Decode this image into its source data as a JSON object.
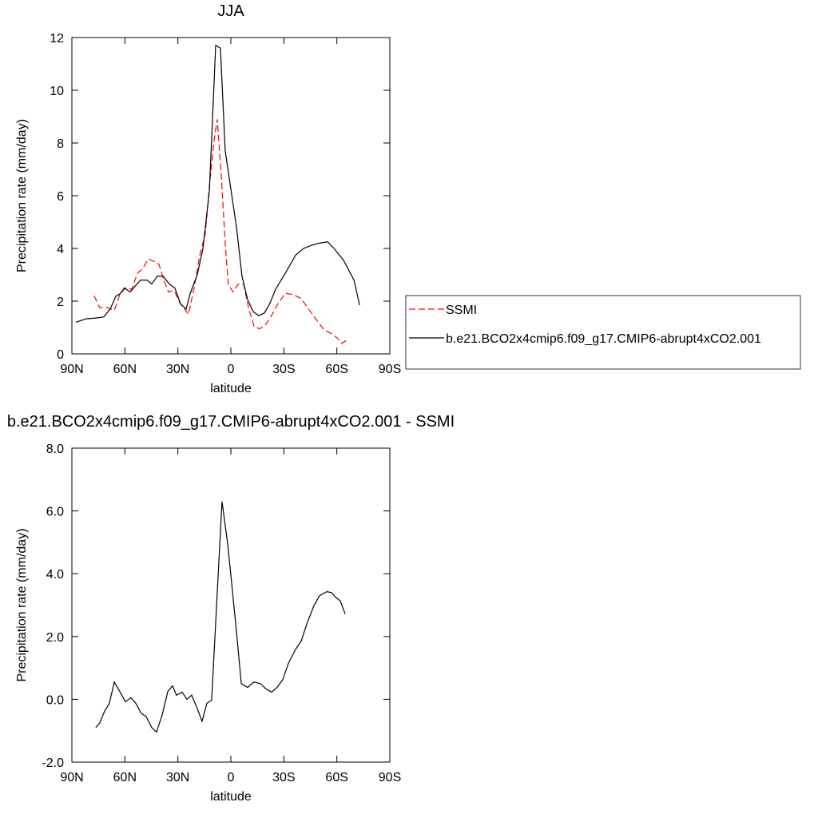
{
  "chart_data": [
    {
      "type": "line",
      "title": "JJA",
      "xlabel": "latitude",
      "ylabel": "Precipitation rate (mm/day)",
      "xlim": [
        90,
        -90
      ],
      "ylim": [
        0,
        12
      ],
      "xticks": [
        {
          "value": 90,
          "label": "90N"
        },
        {
          "value": 60,
          "label": "60N"
        },
        {
          "value": 30,
          "label": "30N"
        },
        0,
        {
          "value": -30,
          "label": "30S"
        },
        {
          "value": -60,
          "label": "60S"
        },
        {
          "value": -90,
          "label": "90S"
        }
      ],
      "yticks": [
        0,
        2,
        4,
        6,
        8,
        10,
        12
      ],
      "legend": "right",
      "series": [
        {
          "name": "SSMI",
          "color": "#ff0000",
          "dashed": true,
          "x": [
            77.4,
            74.2,
            69.7,
            66,
            62.9,
            59.7,
            56,
            53,
            49.8,
            46.6,
            43.4,
            40.7,
            38,
            35.3,
            32,
            29,
            24,
            20.8,
            17.6,
            14.5,
            11.8,
            9.5,
            7.7,
            5.4,
            3.2,
            1.4,
            -1.4,
            -4.1,
            -7.2,
            -10,
            -13.1,
            -16.3,
            -19.5,
            -23,
            -26.2,
            -30.8,
            -35.3,
            -39.8,
            -43.4,
            -48.4,
            -52.9,
            -57.5,
            -60.2,
            -62.9,
            -65.2
          ],
          "values": [
            2.2,
            1.75,
            1.75,
            1.65,
            2.25,
            2.5,
            2.45,
            3.05,
            3.25,
            3.6,
            3.5,
            3.4,
            2.8,
            2.35,
            2.4,
            1.95,
            1.5,
            2.5,
            3.75,
            4.55,
            6.6,
            8.1,
            8.9,
            6.75,
            4.2,
            2.6,
            2.35,
            2.65,
            2.65,
            1.75,
            1.05,
            0.95,
            1.1,
            1.45,
            1.85,
            2.3,
            2.25,
            2.1,
            1.75,
            1.3,
            0.9,
            0.75,
            0.6,
            0.4,
            0.5
          ]
        },
        {
          "name": "b.e21.BCO2x4cmip6.f09_g17.CMIP6-abrupt4xCO2.001",
          "color": "#000000",
          "dashed": false,
          "x": [
            87.8,
            82,
            76.5,
            72,
            68.3,
            65,
            62.9,
            60.2,
            57,
            53.8,
            51.1,
            47.5,
            44.8,
            41.6,
            38.5,
            34.8,
            31.7,
            28.5,
            25.3,
            23,
            19,
            15.8,
            12.2,
            10,
            8.6,
            5.9,
            3.2,
            -3.2,
            -6.3,
            -9.5,
            -12.7,
            -15.8,
            -19,
            -22,
            -25.3,
            -31.2,
            -36.7,
            -41.2,
            -45.7,
            -50.2,
            -54.8,
            -58.4,
            -63.8,
            -69.7,
            -72.9
          ],
          "values": [
            1.2,
            1.33,
            1.36,
            1.4,
            1.7,
            2.2,
            2.27,
            2.5,
            2.35,
            2.6,
            2.8,
            2.8,
            2.65,
            2.95,
            2.95,
            2.65,
            2.5,
            1.9,
            1.7,
            2.3,
            3,
            4,
            6.15,
            9.5,
            11.7,
            11.6,
            7.7,
            4.8,
            2.95,
            2.05,
            1.6,
            1.45,
            1.55,
            1.9,
            2.45,
            3.1,
            3.75,
            4,
            4.12,
            4.2,
            4.25,
            4,
            3.55,
            2.8,
            1.85
          ]
        }
      ]
    },
    {
      "type": "line",
      "title": "b.e21.BCO2x4cmip6.f09_g17.CMIP6-abrupt4xCO2.001 - SSMI",
      "xlabel": "latitude",
      "ylabel": "Precipitation rate (mm/day)",
      "xlim": [
        90,
        -90
      ],
      "ylim": [
        -2,
        8
      ],
      "xticks": [
        {
          "value": 90,
          "label": "90N"
        },
        {
          "value": 60,
          "label": "60N"
        },
        {
          "value": 30,
          "label": "30N"
        },
        0,
        {
          "value": -30,
          "label": "30S"
        },
        {
          "value": -60,
          "label": "60S"
        },
        {
          "value": -90,
          "label": "90S"
        }
      ],
      "yticks": [
        {
          "value": -2,
          "label": "-2.0"
        },
        {
          "value": 0,
          "label": "0.0"
        },
        {
          "value": 2,
          "label": "2.0"
        },
        {
          "value": 4,
          "label": "4.0"
        },
        {
          "value": 6,
          "label": "6.0"
        },
        {
          "value": 8,
          "label": "8.0"
        }
      ],
      "series": [
        {
          "color": "#000000",
          "dashed": false,
          "x": [
            76.5,
            74.2,
            71.5,
            68.8,
            66,
            62.9,
            59.7,
            56.6,
            53.8,
            50.7,
            48,
            44.8,
            42.1,
            38.9,
            35.7,
            33,
            30.8,
            27.6,
            24.9,
            22.2,
            19,
            16.3,
            13.6,
            10.9,
            5,
            1.8,
            -0.9,
            -3.6,
            -5.9,
            -9.5,
            -13.1,
            -16.7,
            -19.9,
            -23,
            -26.2,
            -29.4,
            -32.6,
            -36.7,
            -39.8,
            -43,
            -47,
            -50.2,
            -54.3,
            -57,
            -59.3,
            -62,
            -64.7
          ],
          "values": [
            -0.9,
            -0.75,
            -0.38,
            -0.13,
            0.55,
            0.25,
            -0.08,
            0.05,
            -0.13,
            -0.45,
            -0.55,
            -0.9,
            -1.04,
            -0.5,
            0.25,
            0.43,
            0.13,
            0.23,
            0,
            0.13,
            -0.3,
            -0.7,
            -0.13,
            -0.03,
            6.3,
            4.95,
            3.45,
            1.9,
            0.5,
            0.38,
            0.55,
            0.5,
            0.33,
            0.23,
            0.38,
            0.63,
            1.15,
            1.6,
            1.85,
            2.4,
            2.98,
            3.3,
            3.43,
            3.4,
            3.25,
            3.13,
            2.72
          ]
        }
      ]
    }
  ]
}
